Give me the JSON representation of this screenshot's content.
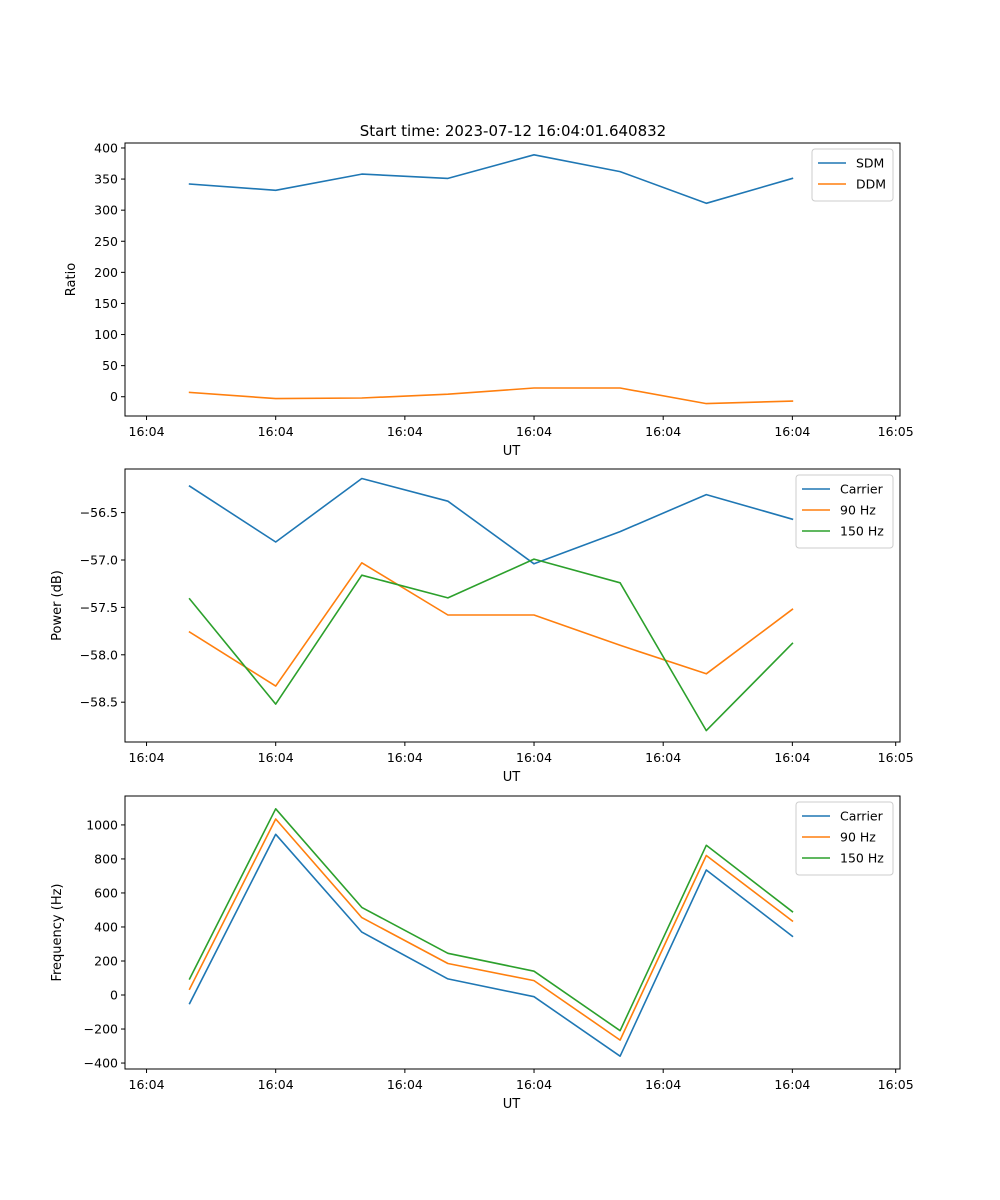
{
  "figure_title": "Start time: 2023-07-12 16:04:01.640832",
  "chart_data": [
    {
      "type": "line",
      "xlabel": "UT",
      "ylabel": "Ratio",
      "x": [
        0,
        1,
        2,
        3,
        4,
        5,
        6,
        7
      ],
      "xlim": [
        -0.75,
        8.25
      ],
      "x_ticks": [
        -0.5,
        1,
        2.5,
        4,
        5.5,
        7,
        8.5
      ],
      "x_ticks_shown": [
        -0.5,
        1,
        2.5,
        4,
        5.5,
        7,
        8.2
      ],
      "x_tick_labels": [
        "16:04",
        "16:04",
        "16:04",
        "16:04",
        "16:04",
        "16:04",
        "16:05"
      ],
      "ylim": [
        -31,
        408
      ],
      "y_ticks": [
        0,
        50,
        100,
        150,
        200,
        250,
        300,
        350,
        400
      ],
      "y_tick_labels": [
        "0",
        "50",
        "100",
        "150",
        "200",
        "250",
        "300",
        "350",
        "400"
      ],
      "legend": "top-right",
      "series": [
        {
          "name": "SDM",
          "color": "#1f77b4",
          "values": [
            342,
            332,
            358,
            351,
            389,
            362,
            311,
            351
          ]
        },
        {
          "name": "DDM",
          "color": "#ff7f0e",
          "values": [
            7,
            -3,
            -2,
            4,
            14,
            14,
            -11,
            -7
          ]
        }
      ]
    },
    {
      "type": "line",
      "xlabel": "UT",
      "ylabel": "Power (dB)",
      "x": [
        0,
        1,
        2,
        3,
        4,
        5,
        6,
        7
      ],
      "xlim": [
        -0.75,
        8.25
      ],
      "x_ticks": [
        -0.5,
        1,
        2.5,
        4,
        5.5,
        7,
        8.5
      ],
      "x_ticks_shown": [
        -0.5,
        1,
        2.5,
        4,
        5.5,
        7,
        8.2
      ],
      "x_tick_labels": [
        "16:04",
        "16:04",
        "16:04",
        "16:04",
        "16:04",
        "16:04",
        "16:05"
      ],
      "ylim": [
        -58.92,
        -56.04
      ],
      "y_ticks": [
        -58.5,
        -58.0,
        -57.5,
        -57.0,
        -56.5
      ],
      "y_tick_labels": [
        "−58.5",
        "−58.0",
        "−57.5",
        "−57.0",
        "−56.5"
      ],
      "legend": "top-right",
      "series": [
        {
          "name": "Carrier",
          "color": "#1f77b4",
          "values": [
            -56.22,
            -56.81,
            -56.14,
            -56.38,
            -57.04,
            -56.7,
            -56.31,
            -56.57
          ]
        },
        {
          "name": "90 Hz",
          "color": "#ff7f0e",
          "values": [
            -57.76,
            -58.33,
            -57.03,
            -57.58,
            -57.58,
            -57.9,
            -58.2,
            -57.52
          ]
        },
        {
          "name": "150 Hz",
          "color": "#2ca02c",
          "values": [
            -57.41,
            -58.52,
            -57.16,
            -57.4,
            -56.99,
            -57.24,
            -58.8,
            -57.88
          ]
        }
      ]
    },
    {
      "type": "line",
      "xlabel": "UT",
      "ylabel": "Frequency (Hz)",
      "x": [
        0,
        1,
        2,
        3,
        4,
        5,
        6,
        7
      ],
      "xlim": [
        -0.75,
        8.25
      ],
      "x_ticks": [
        -0.5,
        1,
        2.5,
        4,
        5.5,
        7,
        8.5
      ],
      "x_ticks_shown": [
        -0.5,
        1,
        2.5,
        4,
        5.5,
        7,
        8.2
      ],
      "x_tick_labels": [
        "16:04",
        "16:04",
        "16:04",
        "16:04",
        "16:04",
        "16:04",
        "16:05"
      ],
      "ylim": [
        -435,
        1170
      ],
      "y_ticks": [
        -400,
        -200,
        0,
        200,
        400,
        600,
        800,
        1000
      ],
      "y_tick_labels": [
        "−400",
        "−200",
        "0",
        "200",
        "400",
        "600",
        "800",
        "1000"
      ],
      "legend": "top-right",
      "series": [
        {
          "name": "Carrier",
          "color": "#1f77b4",
          "values": [
            -50,
            945,
            370,
            95,
            -10,
            -360,
            735,
            345
          ]
        },
        {
          "name": "90 Hz",
          "color": "#ff7f0e",
          "values": [
            35,
            1035,
            455,
            185,
            85,
            -265,
            820,
            435
          ]
        },
        {
          "name": "150 Hz",
          "color": "#2ca02c",
          "values": [
            95,
            1095,
            515,
            245,
            140,
            -210,
            880,
            490
          ]
        }
      ]
    }
  ]
}
